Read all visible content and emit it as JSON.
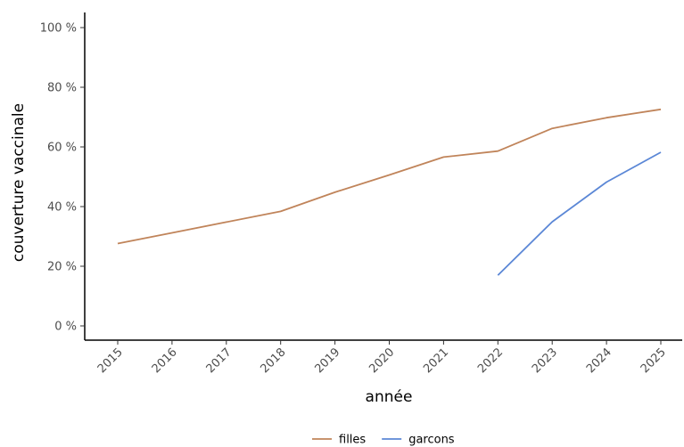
{
  "chart_data": {
    "type": "line",
    "xlabel": "année",
    "ylabel": "couverture vaccinale",
    "x": [
      2015,
      2016,
      2017,
      2018,
      2019,
      2020,
      2021,
      2022,
      2023,
      2024,
      2025
    ],
    "x_tick_labels": [
      "2015",
      "2016",
      "2017",
      "2018",
      "2019",
      "2020",
      "2021",
      "2022",
      "2023",
      "2024",
      "2025"
    ],
    "ylim": [
      0,
      100
    ],
    "y_ticks": [
      0,
      20,
      40,
      60,
      80,
      100
    ],
    "y_tick_labels": [
      "0 %",
      "20 %",
      "40 %",
      "60 %",
      "80 %",
      "100 %"
    ],
    "grid": false,
    "legend_position": "bottom",
    "series": [
      {
        "name": "filles",
        "color": "#c0845a",
        "points": [
          [
            2015,
            27.6
          ],
          [
            2016,
            31.2
          ],
          [
            2017,
            34.8
          ],
          [
            2018,
            38.4
          ],
          [
            2019,
            44.8
          ],
          [
            2020,
            50.6
          ],
          [
            2021,
            56.6
          ],
          [
            2022,
            58.6
          ],
          [
            2023,
            66.2
          ],
          [
            2024,
            69.8
          ],
          [
            2025,
            72.6
          ]
        ]
      },
      {
        "name": "garcons",
        "color": "#5b87d6",
        "points": [
          [
            2022,
            17.0
          ],
          [
            2023,
            34.9
          ],
          [
            2024,
            48.2
          ],
          [
            2025,
            58.2
          ]
        ]
      }
    ]
  }
}
